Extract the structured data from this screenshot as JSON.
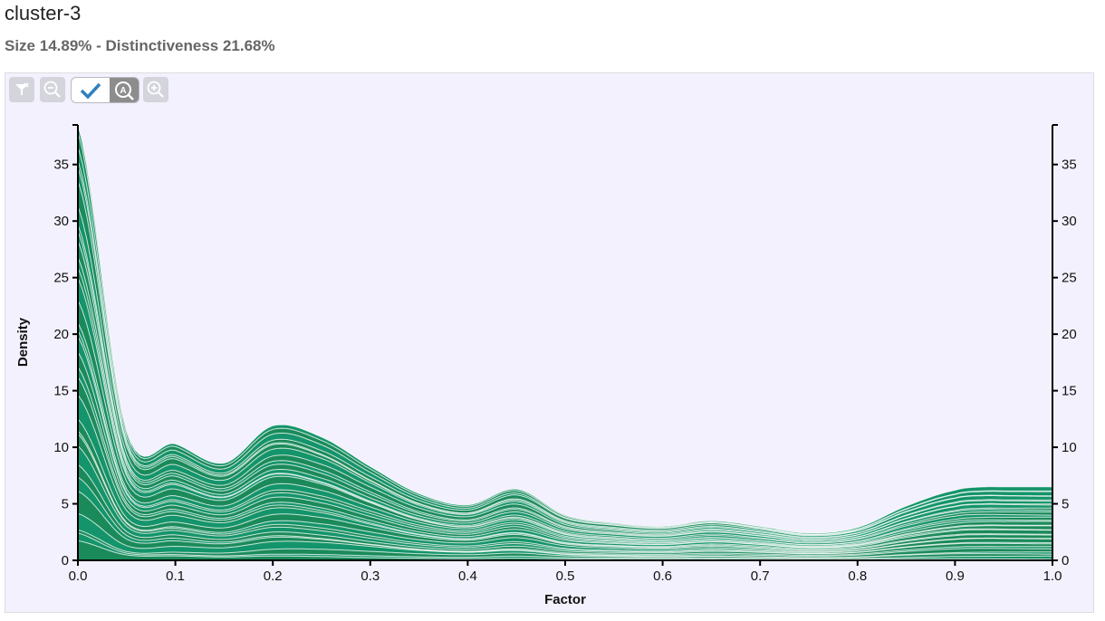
{
  "header": {
    "title": "cluster-3",
    "subtitle": "Size 14.89% - Distinctiveness 21.68%"
  },
  "toolbar": {
    "icons": [
      "filter-icon",
      "zoom-out-icon",
      "check-icon",
      "auto-zoom-icon",
      "zoom-in-icon"
    ]
  },
  "colors": {
    "panel_bg": "#f3f1fd",
    "fill_dark": "#1b8a5a",
    "fill_mid": "#14946a",
    "line": "#ffffff",
    "toggle_blue": "#2f7fc1"
  },
  "chart_data": {
    "type": "area",
    "xlabel": "Factor",
    "ylabel": "Density",
    "xlim": [
      0,
      1
    ],
    "ylim": [
      0,
      38.5
    ],
    "xticks": [
      "0.0",
      "0.1",
      "0.2",
      "0.3",
      "0.4",
      "0.5",
      "0.6",
      "0.7",
      "0.8",
      "0.9",
      "1.0"
    ],
    "yticks": [
      "0",
      "5",
      "10",
      "15",
      "20",
      "25",
      "30",
      "35"
    ],
    "grid": false,
    "x": [
      0,
      0.05,
      0.1,
      0.15,
      0.2,
      0.25,
      0.3,
      0.35,
      0.4,
      0.45,
      0.5,
      0.55,
      0.6,
      0.65,
      0.7,
      0.75,
      0.8,
      0.85,
      0.9,
      0.93,
      0.95,
      1.0
    ],
    "total": [
      38.5,
      11.5,
      10.3,
      8.6,
      11.9,
      10.9,
      8.3,
      5.9,
      4.9,
      6.3,
      4.0,
      3.3,
      3.0,
      3.5,
      3.0,
      2.4,
      2.9,
      4.8,
      6.2,
      6.5,
      6.5,
      6.5
    ],
    "series_count": 32
  }
}
